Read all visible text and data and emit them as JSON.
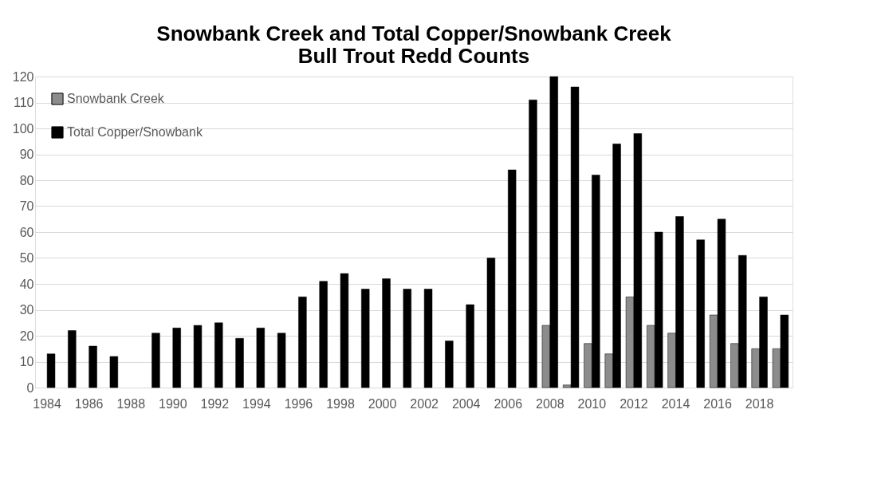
{
  "chart_data": {
    "type": "bar",
    "title": [
      "Snowbank Creek and Total Copper/Snowbank Creek",
      "Bull Trout Redd Counts"
    ],
    "categories": [
      "1984",
      null,
      "1986",
      null,
      "1988",
      null,
      "1990",
      null,
      "1992",
      null,
      "1994",
      null,
      "1996",
      null,
      "1998",
      null,
      "2000",
      null,
      "2002",
      null,
      "2004",
      null,
      "2006",
      null,
      "2008",
      null,
      "2010",
      null,
      "2012",
      null,
      "2014",
      null,
      "2016",
      null,
      "2018",
      null
    ],
    "series": [
      {
        "name": "Snowbank Creek",
        "color": "#8c8c8c",
        "values": [
          null,
          null,
          null,
          null,
          null,
          null,
          null,
          null,
          null,
          null,
          null,
          null,
          null,
          null,
          null,
          null,
          null,
          null,
          null,
          null,
          null,
          null,
          null,
          null,
          24,
          1,
          17,
          13,
          35,
          24,
          21,
          null,
          28,
          17,
          15,
          15
        ]
      },
      {
        "name": "Total Copper/Snowbank",
        "color": "#000000",
        "values": [
          13,
          22,
          16,
          12,
          null,
          21,
          23,
          24,
          25,
          19,
          23,
          21,
          35,
          41,
          44,
          38,
          42,
          38,
          38,
          18,
          32,
          50,
          84,
          111,
          120,
          116,
          82,
          94,
          98,
          60,
          66,
          57,
          65,
          51,
          35,
          28
        ]
      }
    ],
    "ylim": [
      0,
      120
    ],
    "yticks": [
      0,
      10,
      20,
      30,
      40,
      50,
      60,
      70,
      80,
      90,
      100,
      110,
      120
    ],
    "grid": "y",
    "legend": "top left"
  }
}
